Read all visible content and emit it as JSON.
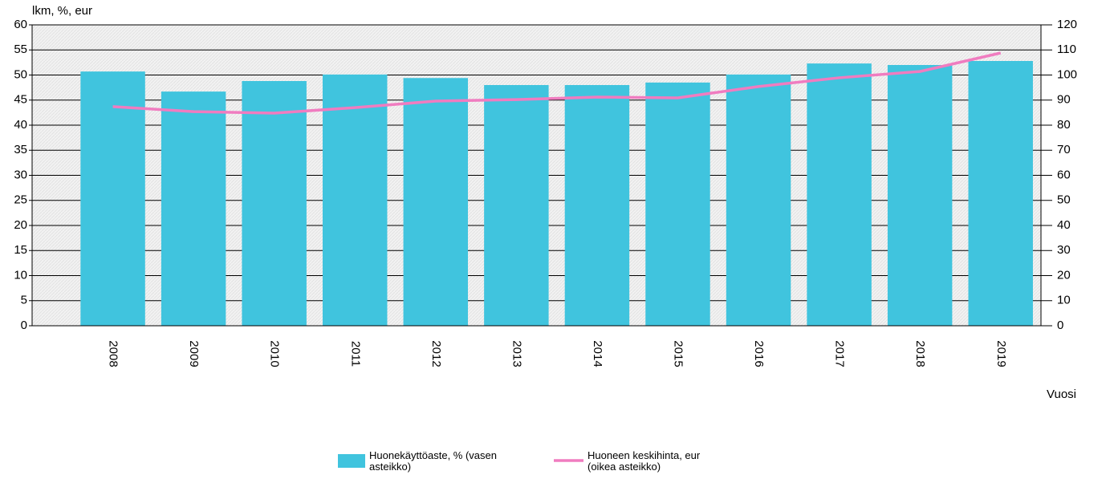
{
  "chart_data": {
    "type": "bar",
    "y_label": "lkm, %, eur",
    "x_label": "Vuosi",
    "categories": [
      "2008",
      "2009",
      "2010",
      "2011",
      "2012",
      "2013",
      "2014",
      "2015",
      "2016",
      "2017",
      "2018",
      "2019"
    ],
    "series": [
      {
        "name": "Huonekäyttöaste, % (vasen asteikko)",
        "type": "bar",
        "color": "#40c4de",
        "axis": "y",
        "values": [
          50.7,
          46.7,
          48.8,
          50.1,
          49.4,
          48.0,
          48.0,
          48.5,
          50.1,
          52.3,
          52.0,
          52.8
        ]
      },
      {
        "name": "Huoneen keskihinta, eur (oikea asteikko)",
        "type": "line",
        "color": "#f07cc0",
        "axis": "y2",
        "values": [
          87.4,
          85.4,
          84.8,
          87.0,
          89.6,
          90.2,
          91.2,
          90.9,
          95.4,
          98.9,
          101.4,
          108.8
        ]
      }
    ],
    "ylim": [
      0,
      60
    ],
    "yticks": [
      0,
      5,
      10,
      15,
      20,
      25,
      30,
      35,
      40,
      45,
      50,
      55,
      60
    ],
    "y2lim": [
      0,
      120
    ],
    "y2ticks": [
      0,
      10,
      20,
      30,
      40,
      50,
      60,
      70,
      80,
      90,
      100,
      110,
      120
    ],
    "grid": true,
    "legend": "bottom"
  }
}
